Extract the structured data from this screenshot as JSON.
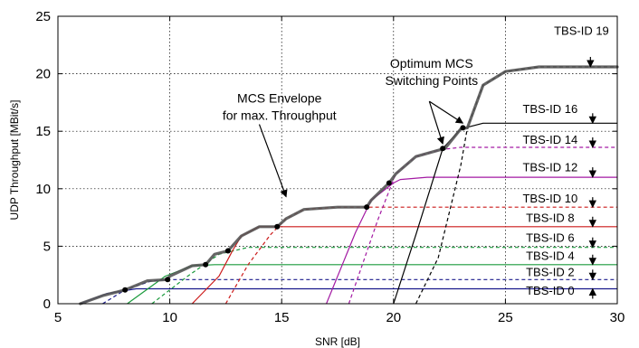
{
  "chart_data": {
    "type": "line",
    "title": "",
    "xlabel": "SNR [dB]",
    "ylabel": "UDP Throughput [MBit/s]",
    "xlim": [
      5,
      30
    ],
    "ylim": [
      0,
      25
    ],
    "xticks": [
      5,
      10,
      15,
      20,
      25,
      30
    ],
    "yticks": [
      0,
      5,
      10,
      15,
      20,
      25
    ],
    "grid": true,
    "series": [
      {
        "name": "TBS-ID 0",
        "color": "#1a1a8c",
        "dash": "solid",
        "points": [
          [
            6.0,
            0.0
          ],
          [
            7.2,
            0.9
          ],
          [
            8.5,
            1.3
          ],
          [
            30,
            1.3
          ]
        ]
      },
      {
        "name": "TBS-ID 2",
        "color": "#1a1a8c",
        "dash": "dashed",
        "points": [
          [
            7.0,
            0.0
          ],
          [
            8.0,
            1.2
          ],
          [
            9.2,
            2.0
          ],
          [
            10.0,
            2.1
          ],
          [
            30,
            2.1
          ]
        ]
      },
      {
        "name": "TBS-ID 4",
        "color": "#1a9a3c",
        "dash": "solid",
        "points": [
          [
            8.1,
            0.0
          ],
          [
            9.8,
            2.4
          ],
          [
            11.0,
            3.3
          ],
          [
            12.0,
            3.4
          ],
          [
            30,
            3.4
          ]
        ]
      },
      {
        "name": "TBS-ID 6",
        "color": "#1a9a3c",
        "dash": "dashed",
        "points": [
          [
            9.2,
            0.0
          ],
          [
            10.8,
            2.4
          ],
          [
            12.2,
            4.3
          ],
          [
            13.5,
            4.9
          ],
          [
            30,
            4.9
          ]
        ]
      },
      {
        "name": "TBS-ID 8",
        "color": "#cc1a1a",
        "dash": "solid",
        "points": [
          [
            11.0,
            0.0
          ],
          [
            12.2,
            2.4
          ],
          [
            12.8,
            4.6
          ],
          [
            13.2,
            5.9
          ],
          [
            14.0,
            6.7
          ],
          [
            15.0,
            6.7
          ],
          [
            30,
            6.7
          ]
        ]
      },
      {
        "name": "TBS-ID 10",
        "color": "#cc1a1a",
        "dash": "dashed",
        "points": [
          [
            12.5,
            0.0
          ],
          [
            13.5,
            3.4
          ],
          [
            14.5,
            6.0
          ],
          [
            15.2,
            7.4
          ],
          [
            16.0,
            8.2
          ],
          [
            17.5,
            8.4
          ],
          [
            30,
            8.4
          ]
        ]
      },
      {
        "name": "TBS-ID 12",
        "color": "#a31aa3",
        "dash": "solid",
        "points": [
          [
            17.0,
            0.0
          ],
          [
            18.3,
            6.2
          ],
          [
            19.0,
            9.0
          ],
          [
            20.0,
            10.5
          ],
          [
            20.3,
            10.8
          ],
          [
            21.5,
            11.0
          ],
          [
            30,
            11.0
          ]
        ]
      },
      {
        "name": "TBS-ID 14",
        "color": "#a31aa3",
        "dash": "dashed",
        "points": [
          [
            18.0,
            0.0
          ],
          [
            19.3,
            7.3
          ],
          [
            20.1,
            11.3
          ],
          [
            21.0,
            12.8
          ],
          [
            22.1,
            13.4
          ],
          [
            23.0,
            13.6
          ],
          [
            30,
            13.6
          ]
        ]
      },
      {
        "name": "TBS-ID 16",
        "color": "#000000",
        "dash": "solid",
        "points": [
          [
            20.0,
            0.0
          ],
          [
            21.0,
            6.0
          ],
          [
            22.2,
            13.5
          ],
          [
            23.0,
            15.2
          ],
          [
            24.0,
            15.7
          ],
          [
            30,
            15.7
          ]
        ]
      },
      {
        "name": "TBS-ID 19",
        "color": "#000000",
        "dash": "dashed",
        "points": [
          [
            21.0,
            0.0
          ],
          [
            22.0,
            4.0
          ],
          [
            23.0,
            12.0
          ],
          [
            23.3,
            15.3
          ],
          [
            24.0,
            19.0
          ],
          [
            25.0,
            20.2
          ],
          [
            26.5,
            20.6
          ],
          [
            30,
            20.6
          ]
        ]
      }
    ],
    "envelope": {
      "name": "MCS Envelope for max. Throughput",
      "color": "#555555",
      "points": [
        [
          6.0,
          0.0
        ],
        [
          7.0,
          0.7
        ],
        [
          8.0,
          1.2
        ],
        [
          9.0,
          2.0
        ],
        [
          9.9,
          2.1
        ],
        [
          10.0,
          2.4
        ],
        [
          11.0,
          3.3
        ],
        [
          11.6,
          3.4
        ],
        [
          12.0,
          4.3
        ],
        [
          12.6,
          4.6
        ],
        [
          13.2,
          5.9
        ],
        [
          14.0,
          6.7
        ],
        [
          14.8,
          6.7
        ],
        [
          15.2,
          7.4
        ],
        [
          16.0,
          8.2
        ],
        [
          17.5,
          8.4
        ],
        [
          18.8,
          8.4
        ],
        [
          19.0,
          9.0
        ],
        [
          19.8,
          10.5
        ],
        [
          20.1,
          11.3
        ],
        [
          21.0,
          12.8
        ],
        [
          22.1,
          13.4
        ],
        [
          22.3,
          13.5
        ],
        [
          23.0,
          15.2
        ],
        [
          23.3,
          15.3
        ],
        [
          24.0,
          19.0
        ],
        [
          25.0,
          20.2
        ],
        [
          26.5,
          20.6
        ],
        [
          30,
          20.6
        ]
      ],
      "switch_points": [
        [
          8.0,
          1.2
        ],
        [
          9.9,
          2.1
        ],
        [
          11.6,
          3.4
        ],
        [
          12.6,
          4.6
        ],
        [
          14.8,
          6.7
        ],
        [
          18.8,
          8.4
        ],
        [
          19.8,
          10.5
        ],
        [
          22.2,
          13.5
        ],
        [
          23.1,
          15.3
        ]
      ]
    },
    "labels": [
      {
        "text": "TBS-ID 19",
        "x": 28.4,
        "y": 23.4,
        "arrow": "down",
        "arrow_x": 28.8,
        "arrow_y": 20.6
      },
      {
        "text": "TBS-ID 16",
        "x": 27.0,
        "y": 16.6,
        "arrow": "down",
        "arrow_x": 28.9,
        "arrow_y": 15.7
      },
      {
        "text": "TBS-ID 14",
        "x": 27.0,
        "y": 13.9,
        "arrow": "down",
        "arrow_x": 28.9,
        "arrow_y": 13.6
      },
      {
        "text": "TBS-ID 12",
        "x": 27.0,
        "y": 11.5,
        "arrow": "down",
        "arrow_x": 28.9,
        "arrow_y": 11.0
      },
      {
        "text": "TBS-ID 10",
        "x": 27.0,
        "y": 8.8,
        "arrow": "down",
        "arrow_x": 28.9,
        "arrow_y": 8.4
      },
      {
        "text": "TBS-ID 8",
        "x": 27.0,
        "y": 7.1,
        "arrow": "down",
        "arrow_x": 28.9,
        "arrow_y": 6.7
      },
      {
        "text": "TBS-ID 6",
        "x": 27.0,
        "y": 5.4,
        "arrow": "down",
        "arrow_x": 28.9,
        "arrow_y": 4.9
      },
      {
        "text": "TBS-ID 4",
        "x": 27.0,
        "y": 3.8,
        "arrow": "down",
        "arrow_x": 28.9,
        "arrow_y": 3.4
      },
      {
        "text": "TBS-ID 2",
        "x": 27.0,
        "y": 2.4,
        "arrow": "down",
        "arrow_x": 28.9,
        "arrow_y": 2.1
      },
      {
        "text": "TBS-ID 0",
        "x": 27.0,
        "y": 0.8,
        "arrow": "up",
        "arrow_x": 28.9,
        "arrow_y": 1.3
      }
    ],
    "annotations": [
      {
        "lines": [
          "MCS Envelope",
          "for max. Throughput"
        ],
        "x": 14.9,
        "y": 17.5,
        "arrows": [
          [
            14.0,
            15.6,
            15.2,
            9.3
          ]
        ]
      },
      {
        "lines": [
          "Optimum MCS",
          "Switching Points"
        ],
        "x": 21.7,
        "y": 20.5,
        "arrows": [
          [
            21.6,
            17.6,
            22.2,
            13.9
          ],
          [
            21.6,
            17.6,
            23.1,
            15.7
          ]
        ]
      }
    ]
  }
}
